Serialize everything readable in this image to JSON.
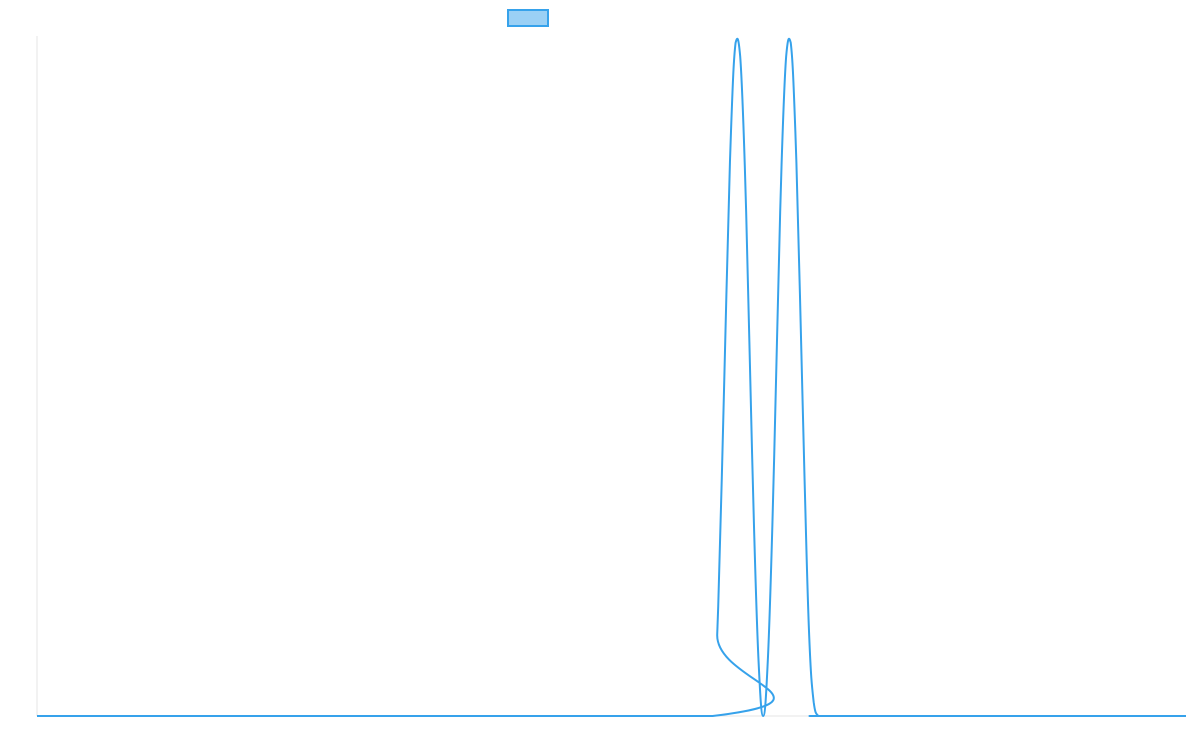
{
  "chart_data": {
    "type": "line",
    "title": "",
    "xlabel": "",
    "ylabel": "",
    "xlim": [
      0,
      100
    ],
    "ylim": [
      0,
      1
    ],
    "grid": false,
    "legend": {
      "position": "top-center",
      "entries": [
        {
          "label": "",
          "color": "#36a2eb",
          "fill": "rgba(54,162,235,0.5)"
        }
      ]
    },
    "series": [
      {
        "color": "#36a2eb",
        "x": [
          0,
          58.8,
          59.2,
          59.6,
          60.0,
          60.4,
          60.8,
          61.2,
          61.6,
          62.0,
          62.4,
          62.8,
          63.2,
          63.6,
          64.0,
          64.4,
          64.8,
          65.2,
          65.6,
          66.0,
          66.4,
          66.8,
          67.2,
          67.6,
          68.0,
          68.4,
          68.8,
          69.2,
          69.6,
          70.0,
          100
        ],
        "y": [
          0,
          0,
          0.12,
          0.35,
          0.62,
          0.86,
          0.99,
          0.97,
          0.81,
          0.55,
          0.28,
          0.08,
          0.0,
          0.08,
          0.28,
          0.55,
          0.81,
          0.97,
          0.99,
          0.86,
          0.62,
          0.35,
          0.12,
          0.02,
          0,
          0,
          0,
          0,
          0,
          0,
          0
        ]
      }
    ]
  }
}
